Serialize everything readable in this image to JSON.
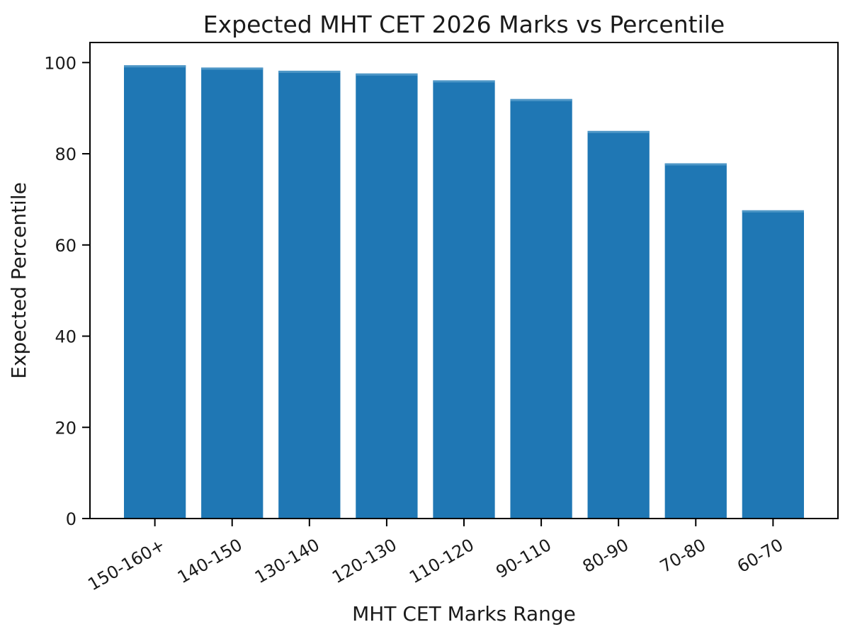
{
  "chart_data": {
    "type": "bar",
    "title": "Expected MHT CET 2026 Marks vs Percentile",
    "xlabel": "MHT CET Marks Range",
    "ylabel": "Expected Percentile",
    "categories": [
      "150-160+",
      "140-150",
      "130-140",
      "120-130",
      "110-120",
      "90-110",
      "80-90",
      "70-80",
      "60-70"
    ],
    "values": [
      99.4,
      98.9,
      98.2,
      97.6,
      96.1,
      92.0,
      85.0,
      77.9,
      67.6
    ],
    "yticks": [
      0,
      20,
      40,
      60,
      80,
      100
    ],
    "ylim": [
      0,
      104.4
    ],
    "x_tick_rotation_deg": 30,
    "grid": false,
    "legend": null,
    "bar_color": "#1f77b4",
    "bar_top_highlight": "#4d96c6",
    "axis_color": "#000000",
    "text_color": "#1a1a1a",
    "background_color": "#ffffff"
  }
}
